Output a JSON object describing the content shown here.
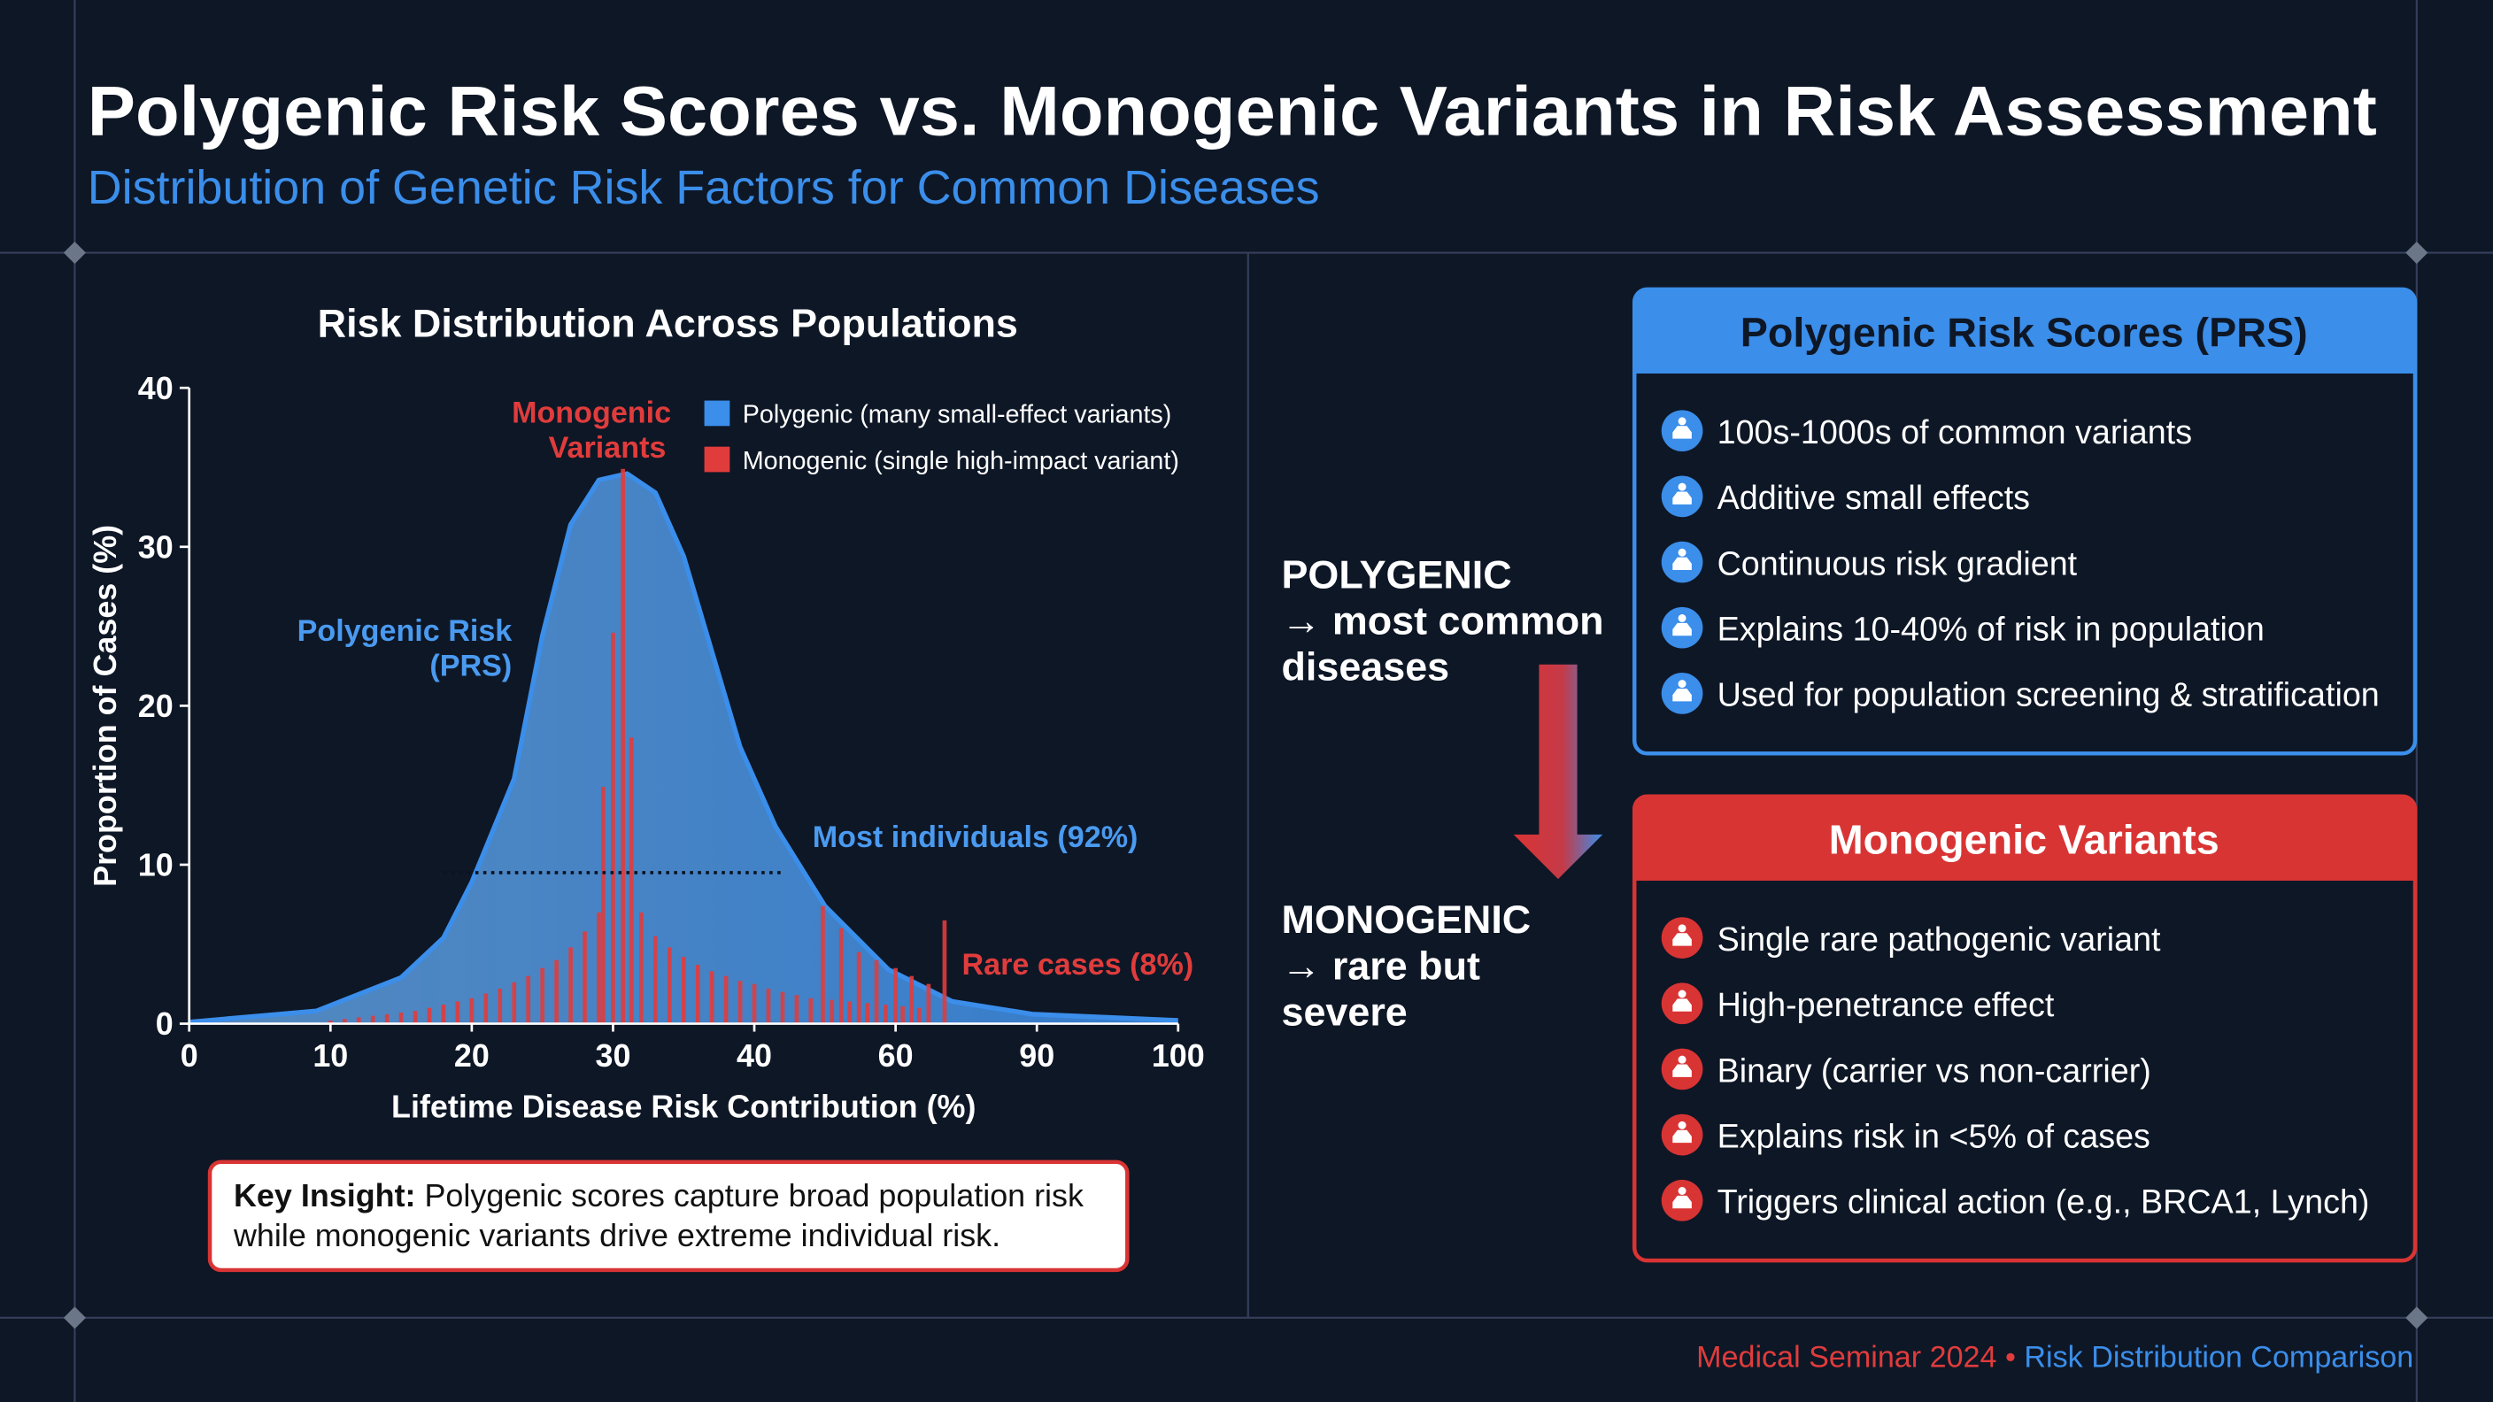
{
  "header": {
    "title": "Polygenic Risk Scores vs. Monogenic Variants in Risk Assessment",
    "subtitle": "Distribution of Genetic Risk Factors for Common Diseases"
  },
  "chart_data": {
    "type": "combo",
    "title": "Risk Distribution Across Populations",
    "x_label": "Lifetime Disease Risk Contribution (%)",
    "y_label": "Proportion of Cases (%)",
    "xlim": [
      0,
      100
    ],
    "xticks": [
      0,
      10,
      20,
      30,
      40,
      60,
      90,
      100
    ],
    "ylim": [
      0,
      40
    ],
    "yticks": [
      0,
      10,
      20,
      30,
      40
    ],
    "legend": "top-right",
    "series": [
      {
        "name": "Polygenic (many small-effect variants)",
        "type": "area",
        "color": "#3b8eea",
        "x": [
          0,
          9,
          15,
          18,
          20,
          23,
          25,
          27,
          29,
          31,
          33,
          35,
          37,
          39,
          43,
          50,
          59,
          72,
          89,
          100
        ],
        "values": [
          0.1,
          0.8,
          2.9,
          5.4,
          8.9,
          15.4,
          24.4,
          31.4,
          34.2,
          34.6,
          33.4,
          29.4,
          23.4,
          17.4,
          12.4,
          7.4,
          3.4,
          1.4,
          0.6,
          0.2
        ]
      },
      {
        "name": "Monogenic (single high-impact variant)",
        "type": "bar",
        "color": "#e03c3c",
        "x": [
          10,
          11,
          12,
          13,
          14,
          15,
          16,
          17,
          18,
          19,
          20,
          21,
          22,
          23,
          24,
          25,
          26,
          27,
          28,
          29,
          29.3,
          30,
          30.7,
          31.3,
          32,
          33,
          34,
          35,
          36,
          37,
          38,
          39,
          40,
          42,
          44,
          46,
          48,
          49.7,
          51,
          52.3,
          53.5,
          54.8,
          56,
          57.3,
          58.6,
          60,
          61.5,
          63.4,
          65,
          67,
          70.4
        ],
        "values": [
          0.2,
          0.3,
          0.4,
          0.5,
          0.6,
          0.7,
          0.8,
          1.0,
          1.2,
          1.4,
          1.6,
          1.9,
          2.2,
          2.6,
          3.0,
          3.5,
          4.0,
          4.8,
          5.8,
          7.0,
          14.9,
          24.6,
          34.9,
          18.0,
          7.0,
          5.5,
          4.8,
          4.2,
          3.7,
          3.3,
          3.0,
          2.7,
          2.5,
          2.2,
          2.0,
          1.8,
          1.6,
          7.4,
          1.5,
          6.0,
          1.4,
          4.5,
          1.3,
          4.0,
          1.2,
          3.5,
          1.1,
          3.0,
          1.0,
          2.5,
          6.5
        ]
      }
    ],
    "annotations": [
      {
        "text": [
          "Monogenic",
          "Variants"
        ],
        "color": "#e03c3c"
      },
      {
        "text": [
          "Polygenic Risk",
          "(PRS)"
        ],
        "color": "#4a9af0"
      },
      {
        "text": [
          "Most individuals (92%)"
        ],
        "color": "#4a9af0"
      },
      {
        "text": [
          "Rare cases (8%)"
        ],
        "color": "#e03c3c"
      }
    ],
    "reference_line": {
      "y": 9.5,
      "x": [
        18,
        44
      ]
    }
  },
  "key_insight": {
    "label": "Key Insight:",
    "lines": [
      "Polygenic scores capture broad population risk",
      "while monogenic variants drive extreme individual risk."
    ]
  },
  "comparison": [
    {
      "lines": [
        "POLYGENIC",
        "→ most common",
        "diseases"
      ]
    },
    {
      "lines": [
        "MONOGENIC",
        "→ rare but",
        "severe"
      ]
    }
  ],
  "panels": [
    {
      "title": "Polygenic Risk Scores (PRS)",
      "color": "#3b8eea",
      "items": [
        "100s-1000s of common variants",
        "Additive small effects",
        "Continuous risk gradient",
        "Explains 10-40% of risk in population",
        "Used for population screening & stratification"
      ]
    },
    {
      "title": "Monogenic Variants",
      "color": "#d93434",
      "items": [
        "Single rare pathogenic variant",
        "High-penetrance effect",
        "Binary (carrier vs non-carrier)",
        "Explains risk in <5% of cases",
        "Triggers clinical action (e.g., BRCA1, Lynch)"
      ]
    }
  ],
  "footer": {
    "event": "Medical Seminar 2024",
    "separator": "•",
    "topic": "Risk Distribution Comparison"
  }
}
